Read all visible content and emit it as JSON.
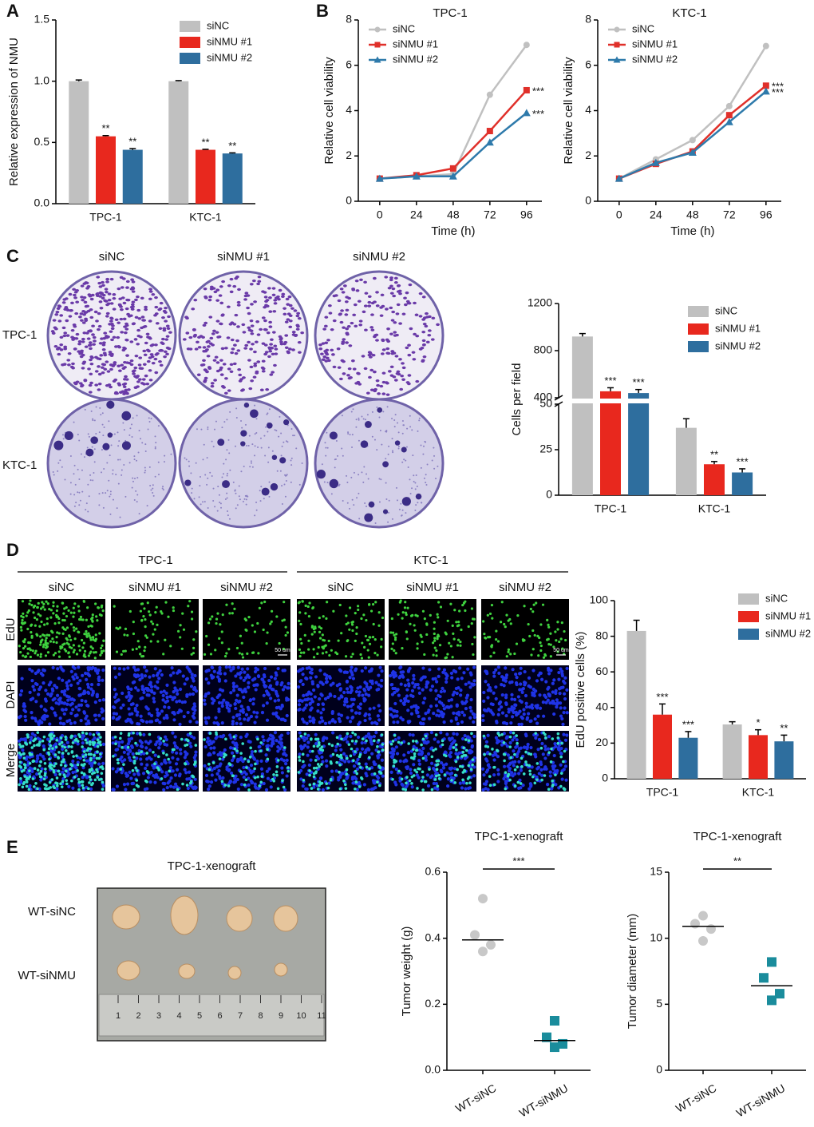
{
  "chart_data": [
    {
      "type": "bar",
      "ylabel": "Relative expression of NMU",
      "categories": [
        "TPC-1",
        "KTC-1"
      ],
      "series": [
        {
          "name": "siNC",
          "color": "#c0c0c0",
          "values": [
            1.0,
            1.0
          ],
          "errors": [
            0.01,
            0.005
          ]
        },
        {
          "name": "siNMU #1",
          "color": "#e8281e",
          "values": [
            0.55,
            0.44
          ],
          "errors": [
            0.006,
            0.004
          ],
          "significance": [
            "**",
            "**"
          ]
        },
        {
          "name": "siNMU #2",
          "color": "#2e6e9e",
          "values": [
            0.44,
            0.41
          ],
          "errors": [
            0.01,
            0.005
          ],
          "significance": [
            "**",
            "**"
          ]
        }
      ],
      "ylim": [
        0,
        1.5
      ],
      "yticks": [
        {
          "value": 0,
          "label": "0.0"
        },
        0.5,
        {
          "value": 1,
          "label": "1.0"
        },
        1.5
      ],
      "legend": "upper right"
    },
    {
      "type": "line",
      "title": "TPC-1",
      "xlabel": "Time (h)",
      "ylabel": "Relative cell viability",
      "x": [
        0,
        24,
        48,
        72,
        96
      ],
      "series": [
        {
          "name": "siNC",
          "color": "#c0c0c0",
          "marker": "circle",
          "values": [
            1.0,
            1.1,
            1.2,
            4.7,
            6.9
          ]
        },
        {
          "name": "siNMU #1",
          "color": "#e0302a",
          "marker": "square",
          "values": [
            1.0,
            1.15,
            1.45,
            3.1,
            4.9
          ],
          "significance": "***"
        },
        {
          "name": "siNMU #2",
          "color": "#2e7aab",
          "marker": "triangle",
          "values": [
            1.0,
            1.1,
            1.1,
            2.6,
            3.9
          ],
          "significance": "***"
        }
      ],
      "xlim": [
        -14,
        106
      ],
      "xticks": [
        0,
        24,
        48,
        72,
        96
      ],
      "ylim": [
        0,
        8
      ],
      "yticks": [
        0,
        2,
        4,
        6,
        8
      ],
      "legend": "upper left"
    },
    {
      "type": "line",
      "title": "KTC-1",
      "xlabel": "Time (h)",
      "ylabel": "Relative cell viability",
      "x": [
        0,
        24,
        48,
        72,
        96
      ],
      "series": [
        {
          "name": "siNC",
          "color": "#c0c0c0",
          "marker": "circle",
          "values": [
            1.0,
            1.85,
            2.7,
            4.2,
            6.85
          ]
        },
        {
          "name": "siNMU #1",
          "color": "#e0302a",
          "marker": "square",
          "values": [
            1.0,
            1.65,
            2.2,
            3.8,
            5.1
          ],
          "significance": "***"
        },
        {
          "name": "siNMU #2",
          "color": "#2e7aab",
          "marker": "triangle",
          "values": [
            1.0,
            1.7,
            2.15,
            3.5,
            4.85
          ],
          "significance": "***"
        }
      ],
      "xlim": [
        -14,
        106
      ],
      "xticks": [
        0,
        24,
        48,
        72,
        96
      ],
      "ylim": [
        0,
        8
      ],
      "yticks": [
        0,
        2,
        4,
        6,
        8
      ],
      "legend": "upper left"
    },
    {
      "type": "bar",
      "ylabel": "Cells per field",
      "categories": [
        "TPC-1",
        "KTC-1"
      ],
      "series": [
        {
          "name": "siNC",
          "color": "#c0c0c0",
          "values": [
            920,
            37
          ],
          "errors": [
            25,
            5
          ]
        },
        {
          "name": "siNMU #1",
          "color": "#e8281e",
          "values": [
            455,
            17
          ],
          "errors": [
            30,
            1.5
          ],
          "significance": [
            "***",
            "**"
          ]
        },
        {
          "name": "siNMU #2",
          "color": "#2e6e9e",
          "values": [
            440,
            12.5
          ],
          "errors": [
            30,
            2
          ],
          "significance": [
            "***",
            "***"
          ]
        }
      ],
      "ylim": [
        0,
        1200
      ],
      "yticks": [
        0,
        25,
        50,
        400,
        800,
        1200
      ],
      "axis_break": [
        50,
        400
      ],
      "legend": "upper right"
    },
    {
      "type": "bar",
      "ylabel": "EdU positive cells (%)",
      "categories": [
        "TPC-1",
        "KTC-1"
      ],
      "series": [
        {
          "name": "siNC",
          "color": "#c0c0c0",
          "values": [
            83,
            30.5
          ],
          "errors": [
            6,
            1.5
          ]
        },
        {
          "name": "siNMU #1",
          "color": "#e8281e",
          "values": [
            36,
            24.5
          ],
          "errors": [
            6,
            3
          ],
          "significance": [
            "***",
            "*"
          ]
        },
        {
          "name": "siNMU #2",
          "color": "#2e6e9e",
          "values": [
            23,
            21
          ],
          "errors": [
            3.5,
            3.5
          ],
          "significance": [
            "***",
            "**"
          ]
        }
      ],
      "ylim": [
        0,
        100
      ],
      "yticks": [
        0,
        20,
        40,
        60,
        80,
        100
      ],
      "legend": "upper right"
    },
    {
      "type": "scatter",
      "title": "TPC-1-xenograft",
      "ylabel": "Tumor weight (g)",
      "categories": [
        "WT-siNC",
        "WT-siNMU"
      ],
      "values": [
        [
          0.52,
          0.41,
          0.38,
          0.36
        ],
        [
          0.15,
          0.1,
          0.08,
          0.07
        ]
      ],
      "medians": [
        0.395,
        0.09
      ],
      "colors": [
        "#c8c8c8",
        "#1a8c9c"
      ],
      "markers": [
        "circle",
        "square"
      ],
      "significance": "***",
      "ylim": [
        0,
        0.6
      ],
      "yticks": [
        {
          "value": 0,
          "label": "0.0"
        },
        0.2,
        0.4,
        0.6
      ]
    },
    {
      "type": "scatter",
      "title": "TPC-1-xenograft",
      "ylabel": "Tumor diameter (mm)",
      "categories": [
        "WT-siNC",
        "WT-siNMU"
      ],
      "values": [
        [
          11.7,
          11.1,
          10.7,
          9.8
        ],
        [
          8.2,
          7.0,
          5.8,
          5.3
        ]
      ],
      "medians": [
        10.9,
        6.4
      ],
      "colors": [
        "#c8c8c8",
        "#1a8c9c"
      ],
      "markers": [
        "circle",
        "square"
      ],
      "significance": "**",
      "ylim": [
        0,
        15
      ],
      "yticks": [
        0,
        5,
        10,
        15
      ]
    }
  ],
  "figure": {
    "panel_letters": [
      "A",
      "B",
      "C",
      "D",
      "E"
    ],
    "colony": {
      "columns": [
        "siNC",
        "siNMU #1",
        "siNMU #2"
      ],
      "rows": [
        "TPC-1",
        "KTC-1"
      ]
    },
    "edu": {
      "groups": [
        "TPC-1",
        "KTC-1"
      ],
      "columns": [
        "siNC",
        "siNMU #1",
        "siNMU #2",
        "siNC",
        "siNMU #1",
        "siNMU #2"
      ],
      "rows": [
        "EdU",
        "DAPI",
        "Merge"
      ],
      "scale_bar": "50 um"
    },
    "xenograft": {
      "title": "TPC-1-xenograft",
      "rows": [
        "WT-siNC",
        "WT-siNMU"
      ],
      "ruler": [
        1,
        2,
        3,
        4,
        5,
        6,
        7,
        8,
        9,
        10,
        11
      ]
    }
  }
}
